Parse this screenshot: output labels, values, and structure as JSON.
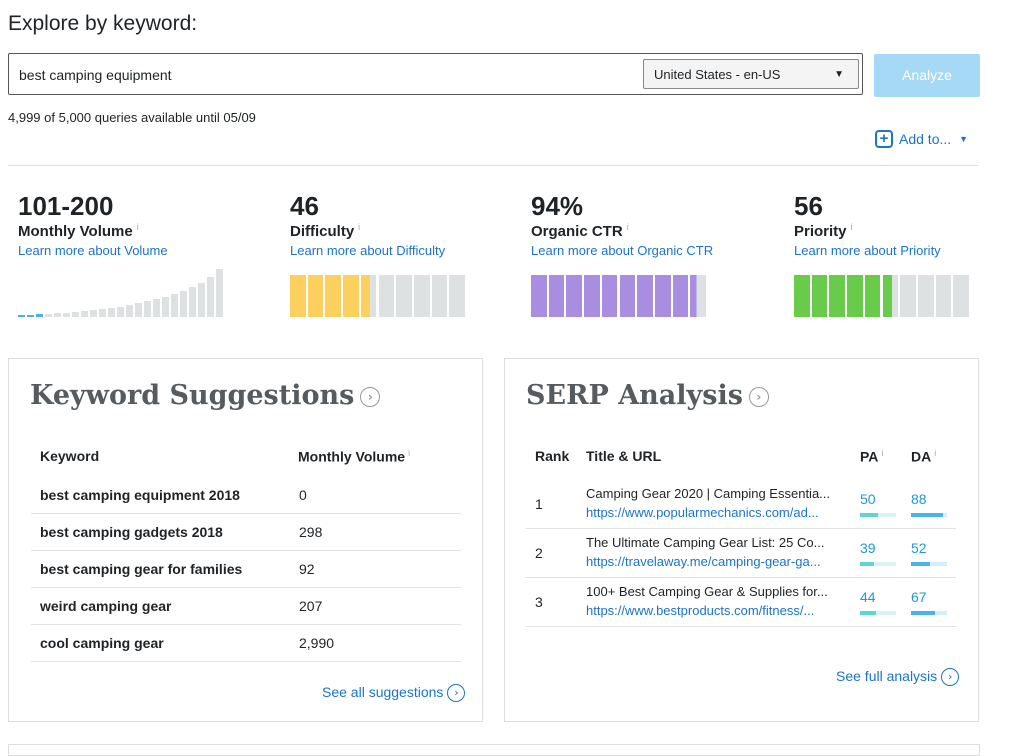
{
  "heading": "Explore by keyword:",
  "search": {
    "value": "best camping equipment",
    "locale": "United States - en-US",
    "analyze_label": "Analyze"
  },
  "quota": "4,999 of 5,000 queries available until 05/09",
  "add_to": "Add to...",
  "metrics": [
    {
      "value": "101-200",
      "label": "Monthly Volume",
      "learn": "Learn more about Volume"
    },
    {
      "value": "46",
      "label": "Difficulty",
      "learn": "Learn more about Difficulty"
    },
    {
      "value": "94%",
      "label": "Organic CTR",
      "learn": "Learn more about Organic CTR"
    },
    {
      "value": "56",
      "label": "Priority",
      "learn": "Learn more about Priority"
    }
  ],
  "info_glyph": "i",
  "colors": {
    "difficulty": "#fcd05f",
    "ctr": "#a98de0",
    "priority": "#68cc4a",
    "inactive": "#dde1e2",
    "link": "#1c73c9",
    "pa_bar": "#5cd6cf",
    "da_bar": "#4ab3e8"
  },
  "keyword_suggestions": {
    "title": "Keyword Suggestions",
    "col_keyword": "Keyword",
    "col_volume": "Monthly Volume",
    "rows": [
      {
        "keyword": "best camping equipment 2018",
        "volume": "0"
      },
      {
        "keyword": "best camping gadgets 2018",
        "volume": "298"
      },
      {
        "keyword": "best camping gear for families",
        "volume": "92"
      },
      {
        "keyword": "weird camping gear",
        "volume": "207"
      },
      {
        "keyword": "cool camping gear",
        "volume": "2,990"
      }
    ],
    "see_all": "See all suggestions"
  },
  "serp": {
    "title": "SERP Analysis",
    "col_rank": "Rank",
    "col_title": "Title & URL",
    "col_pa": "PA",
    "col_da": "DA",
    "rows": [
      {
        "rank": "1",
        "title": "Camping Gear 2020 | Camping Essentia...",
        "url": "https://www.popularmechanics.com/ad...",
        "pa": "50",
        "da": "88"
      },
      {
        "rank": "2",
        "title": "The Ultimate Camping Gear List: 25 Co...",
        "url": "https://travelaway.me/camping-gear-ga...",
        "pa": "39",
        "da": "52"
      },
      {
        "rank": "3",
        "title": "100+ Best Camping Gear & Supplies for...",
        "url": "https://www.bestproducts.com/fitness/...",
        "pa": "44",
        "da": "67"
      }
    ],
    "see_full": "See full analysis"
  }
}
